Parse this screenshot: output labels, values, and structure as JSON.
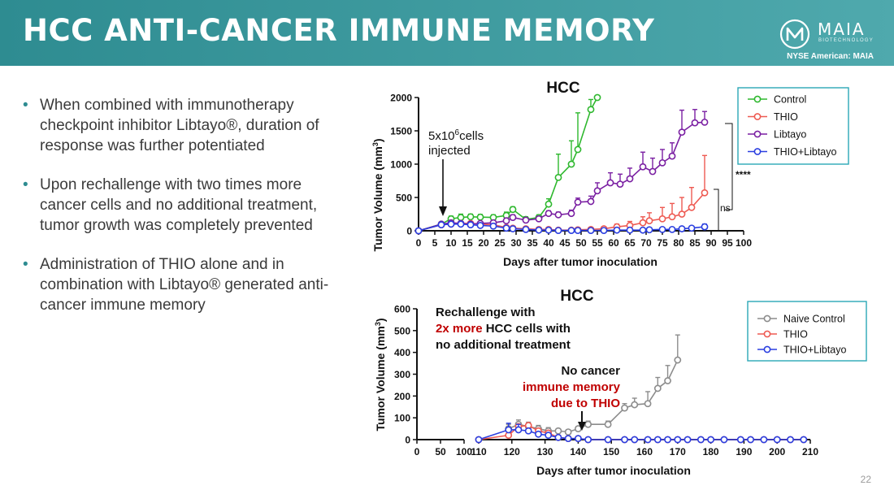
{
  "header": {
    "title": "HCC ANTI-CANCER IMMUNE MEMORY",
    "logo_name": "MAIA",
    "logo_sub": "BIOTECHNOLOGY",
    "ticker": "NYSE American: MAIA"
  },
  "bullets": [
    "When combined with immunotherapy checkpoint inhibitor Libtayo®, duration of response was further potentiated",
    "Upon rechallenge with two times more cancer cells and no additional treatment, tumor growth was completely prevented",
    "Administration of THIO alone and in combination with Libtayo® generated anti-cancer immune memory"
  ],
  "page_number": "22",
  "colors": {
    "header": "#3a9ca0",
    "control": "#2eb82e",
    "thio": "#ee5a52",
    "libtayo": "#7a1fa2",
    "combo": "#2b3fe0",
    "naive": "#8c8c8c",
    "red_text": "#c00000"
  },
  "chart_data": [
    {
      "type": "line",
      "title": "HCC",
      "xlabel": "Days after tumor inoculation",
      "ylabel_main": "Tumor Volume (mm",
      "ylabel_sup": "3",
      "ylabel_end": ")",
      "xlim": [
        0,
        100
      ],
      "ylim": [
        0,
        2000
      ],
      "xticks": [
        0,
        5,
        10,
        15,
        20,
        25,
        30,
        35,
        40,
        45,
        50,
        55,
        60,
        65,
        70,
        75,
        80,
        85,
        90,
        95,
        100
      ],
      "yticks": [
        0,
        500,
        1000,
        1500,
        2000
      ],
      "annotation": {
        "line1_a": "5x10",
        "line1_sup": "6",
        "line1_b": "cells",
        "line2": "injected",
        "x": 7
      },
      "significance": {
        "star": "****",
        "ns": "ns"
      },
      "series": [
        {
          "name": "Control",
          "color": "#2eb82e",
          "x": [
            0,
            7,
            10,
            13,
            16,
            19,
            23,
            27,
            29,
            33,
            37,
            40,
            43,
            47,
            49,
            53,
            55
          ],
          "y": [
            0,
            100,
            180,
            200,
            210,
            205,
            200,
            230,
            320,
            170,
            200,
            400,
            800,
            1000,
            1220,
            1820,
            2000
          ],
          "err": [
            0,
            20,
            40,
            50,
            40,
            40,
            40,
            50,
            40,
            40,
            40,
            80,
            350,
            350,
            550,
            150,
            0
          ]
        },
        {
          "name": "THIO",
          "color": "#ee5a52",
          "x": [
            0,
            7,
            10,
            13,
            16,
            19,
            23,
            27,
            29,
            33,
            37,
            40,
            43,
            47,
            49,
            53,
            57,
            61,
            65,
            69,
            71,
            75,
            78,
            81,
            84,
            88
          ],
          "y": [
            0,
            90,
            100,
            110,
            110,
            100,
            90,
            50,
            40,
            30,
            20,
            20,
            10,
            10,
            15,
            20,
            30,
            60,
            80,
            120,
            150,
            180,
            210,
            250,
            350,
            570
          ],
          "err": [
            0,
            20,
            30,
            30,
            30,
            30,
            30,
            30,
            20,
            10,
            10,
            10,
            10,
            10,
            10,
            10,
            20,
            40,
            60,
            90,
            120,
            170,
            200,
            250,
            300,
            560
          ]
        },
        {
          "name": "Libtayo",
          "color": "#7a1fa2",
          "x": [
            0,
            7,
            10,
            13,
            16,
            19,
            23,
            27,
            29,
            33,
            37,
            40,
            43,
            47,
            49,
            53,
            55,
            59,
            62,
            65,
            69,
            72,
            75,
            78,
            81,
            85,
            88
          ],
          "y": [
            0,
            100,
            120,
            110,
            100,
            110,
            120,
            150,
            200,
            160,
            180,
            260,
            240,
            260,
            430,
            440,
            600,
            720,
            700,
            780,
            960,
            890,
            1020,
            1120,
            1480,
            1620,
            1630
          ],
          "err": [
            0,
            20,
            30,
            30,
            30,
            30,
            30,
            40,
            40,
            30,
            30,
            40,
            40,
            50,
            60,
            80,
            120,
            150,
            150,
            160,
            220,
            200,
            200,
            200,
            330,
            200,
            160
          ]
        },
        {
          "name": "THIO+Libtayo",
          "color": "#2b3fe0",
          "x": [
            0,
            7,
            10,
            13,
            16,
            19,
            23,
            27,
            29,
            33,
            37,
            40,
            43,
            47,
            49,
            53,
            57,
            61,
            65,
            69,
            71,
            75,
            78,
            81,
            84,
            88
          ],
          "y": [
            0,
            90,
            100,
            100,
            90,
            80,
            70,
            40,
            30,
            20,
            10,
            10,
            5,
            5,
            5,
            5,
            5,
            10,
            10,
            10,
            15,
            20,
            20,
            30,
            40,
            60
          ],
          "err": [
            0,
            20,
            20,
            20,
            20,
            20,
            20,
            20,
            10,
            10,
            5,
            5,
            5,
            5,
            5,
            5,
            5,
            5,
            5,
            5,
            5,
            10,
            10,
            20,
            30,
            40
          ]
        }
      ]
    },
    {
      "type": "line",
      "title": "HCC",
      "xlabel": "Days after tumor inoculation",
      "ylabel_main": "Tumor Volume (mm",
      "ylabel_sup": "3",
      "ylabel_end": ")",
      "xticks_low": [
        0,
        50,
        100
      ],
      "xticks_high": [
        110,
        120,
        130,
        140,
        150,
        160,
        170,
        180,
        190,
        200,
        210
      ],
      "ylim": [
        0,
        600
      ],
      "yticks": [
        0,
        100,
        200,
        300,
        400,
        500,
        600
      ],
      "annotation_top": {
        "line1": "Rechallenge with",
        "line2_red": "2x more",
        "line2_rest": " HCC cells with",
        "line3": "no additional treatment"
      },
      "annotation_arrow": {
        "line1": "No cancer",
        "line2": "immune memory",
        "line3": "due to THIO",
        "x": 140
      },
      "series": [
        {
          "name": "Naive Control",
          "color": "#8c8c8c",
          "x": [
            119,
            122,
            125,
            128,
            131,
            134,
            137,
            140,
            143,
            149,
            154,
            157,
            161,
            164,
            167,
            170
          ],
          "y": [
            50,
            70,
            60,
            50,
            40,
            40,
            35,
            50,
            70,
            70,
            145,
            160,
            165,
            235,
            270,
            365
          ],
          "err": [
            20,
            20,
            20,
            15,
            15,
            10,
            10,
            10,
            15,
            15,
            20,
            30,
            55,
            50,
            70,
            115
          ]
        },
        {
          "name": "THIO",
          "color": "#ee5a52",
          "x": [
            110,
            119,
            122,
            125,
            128,
            131,
            134,
            137,
            140,
            143,
            149,
            154,
            157,
            161,
            164,
            167,
            170,
            173,
            177,
            180,
            184,
            189,
            192,
            196,
            200,
            204,
            208
          ],
          "y": [
            0,
            20,
            60,
            65,
            40,
            30,
            10,
            5,
            5,
            0,
            0,
            0,
            0,
            0,
            0,
            0,
            0,
            0,
            0,
            0,
            0,
            0,
            0,
            0,
            0,
            0,
            0
          ],
          "err": [
            0,
            10,
            10,
            10,
            10,
            10,
            5,
            5,
            5,
            0,
            0,
            0,
            0,
            0,
            0,
            0,
            0,
            0,
            0,
            0,
            0,
            0,
            0,
            0,
            0,
            0,
            0
          ]
        },
        {
          "name": "THIO+Libtayo",
          "color": "#2b3fe0",
          "x": [
            110,
            119,
            122,
            125,
            128,
            131,
            134,
            137,
            140,
            143,
            149,
            154,
            157,
            161,
            164,
            167,
            170,
            173,
            177,
            180,
            184,
            189,
            192,
            196,
            200,
            204,
            208
          ],
          "y": [
            0,
            45,
            45,
            40,
            25,
            20,
            10,
            5,
            5,
            0,
            0,
            0,
            0,
            0,
            0,
            0,
            0,
            0,
            0,
            0,
            0,
            0,
            0,
            0,
            0,
            0,
            0
          ],
          "err": [
            0,
            30,
            25,
            10,
            10,
            5,
            5,
            5,
            5,
            0,
            0,
            0,
            0,
            0,
            0,
            0,
            0,
            0,
            0,
            0,
            0,
            0,
            0,
            0,
            0,
            0,
            0
          ]
        }
      ]
    }
  ]
}
